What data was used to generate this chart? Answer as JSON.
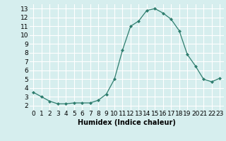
{
  "x": [
    0,
    1,
    2,
    3,
    4,
    5,
    6,
    7,
    8,
    9,
    10,
    11,
    12,
    13,
    14,
    15,
    16,
    17,
    18,
    19,
    20,
    21,
    22,
    23
  ],
  "y": [
    3.5,
    3.0,
    2.5,
    2.2,
    2.2,
    2.3,
    2.3,
    2.3,
    2.6,
    3.3,
    5.0,
    8.3,
    11.0,
    11.6,
    12.8,
    13.0,
    12.5,
    11.8,
    10.5,
    7.8,
    6.5,
    5.0,
    4.7,
    5.1
  ],
  "line_color": "#2e7d6e",
  "marker": "D",
  "marker_size": 2,
  "bg_color": "#d6eeee",
  "grid_color": "#ffffff",
  "xlabel": "Humidex (Indice chaleur)",
  "ylim": [
    1.5,
    13.5
  ],
  "xlim": [
    -0.5,
    23.5
  ],
  "yticks": [
    2,
    3,
    4,
    5,
    6,
    7,
    8,
    9,
    10,
    11,
    12,
    13
  ],
  "xticks": [
    0,
    1,
    2,
    3,
    4,
    5,
    6,
    7,
    8,
    9,
    10,
    11,
    12,
    13,
    14,
    15,
    16,
    17,
    18,
    19,
    20,
    21,
    22,
    23
  ],
  "label_fontsize": 7,
  "tick_fontsize": 6.5
}
